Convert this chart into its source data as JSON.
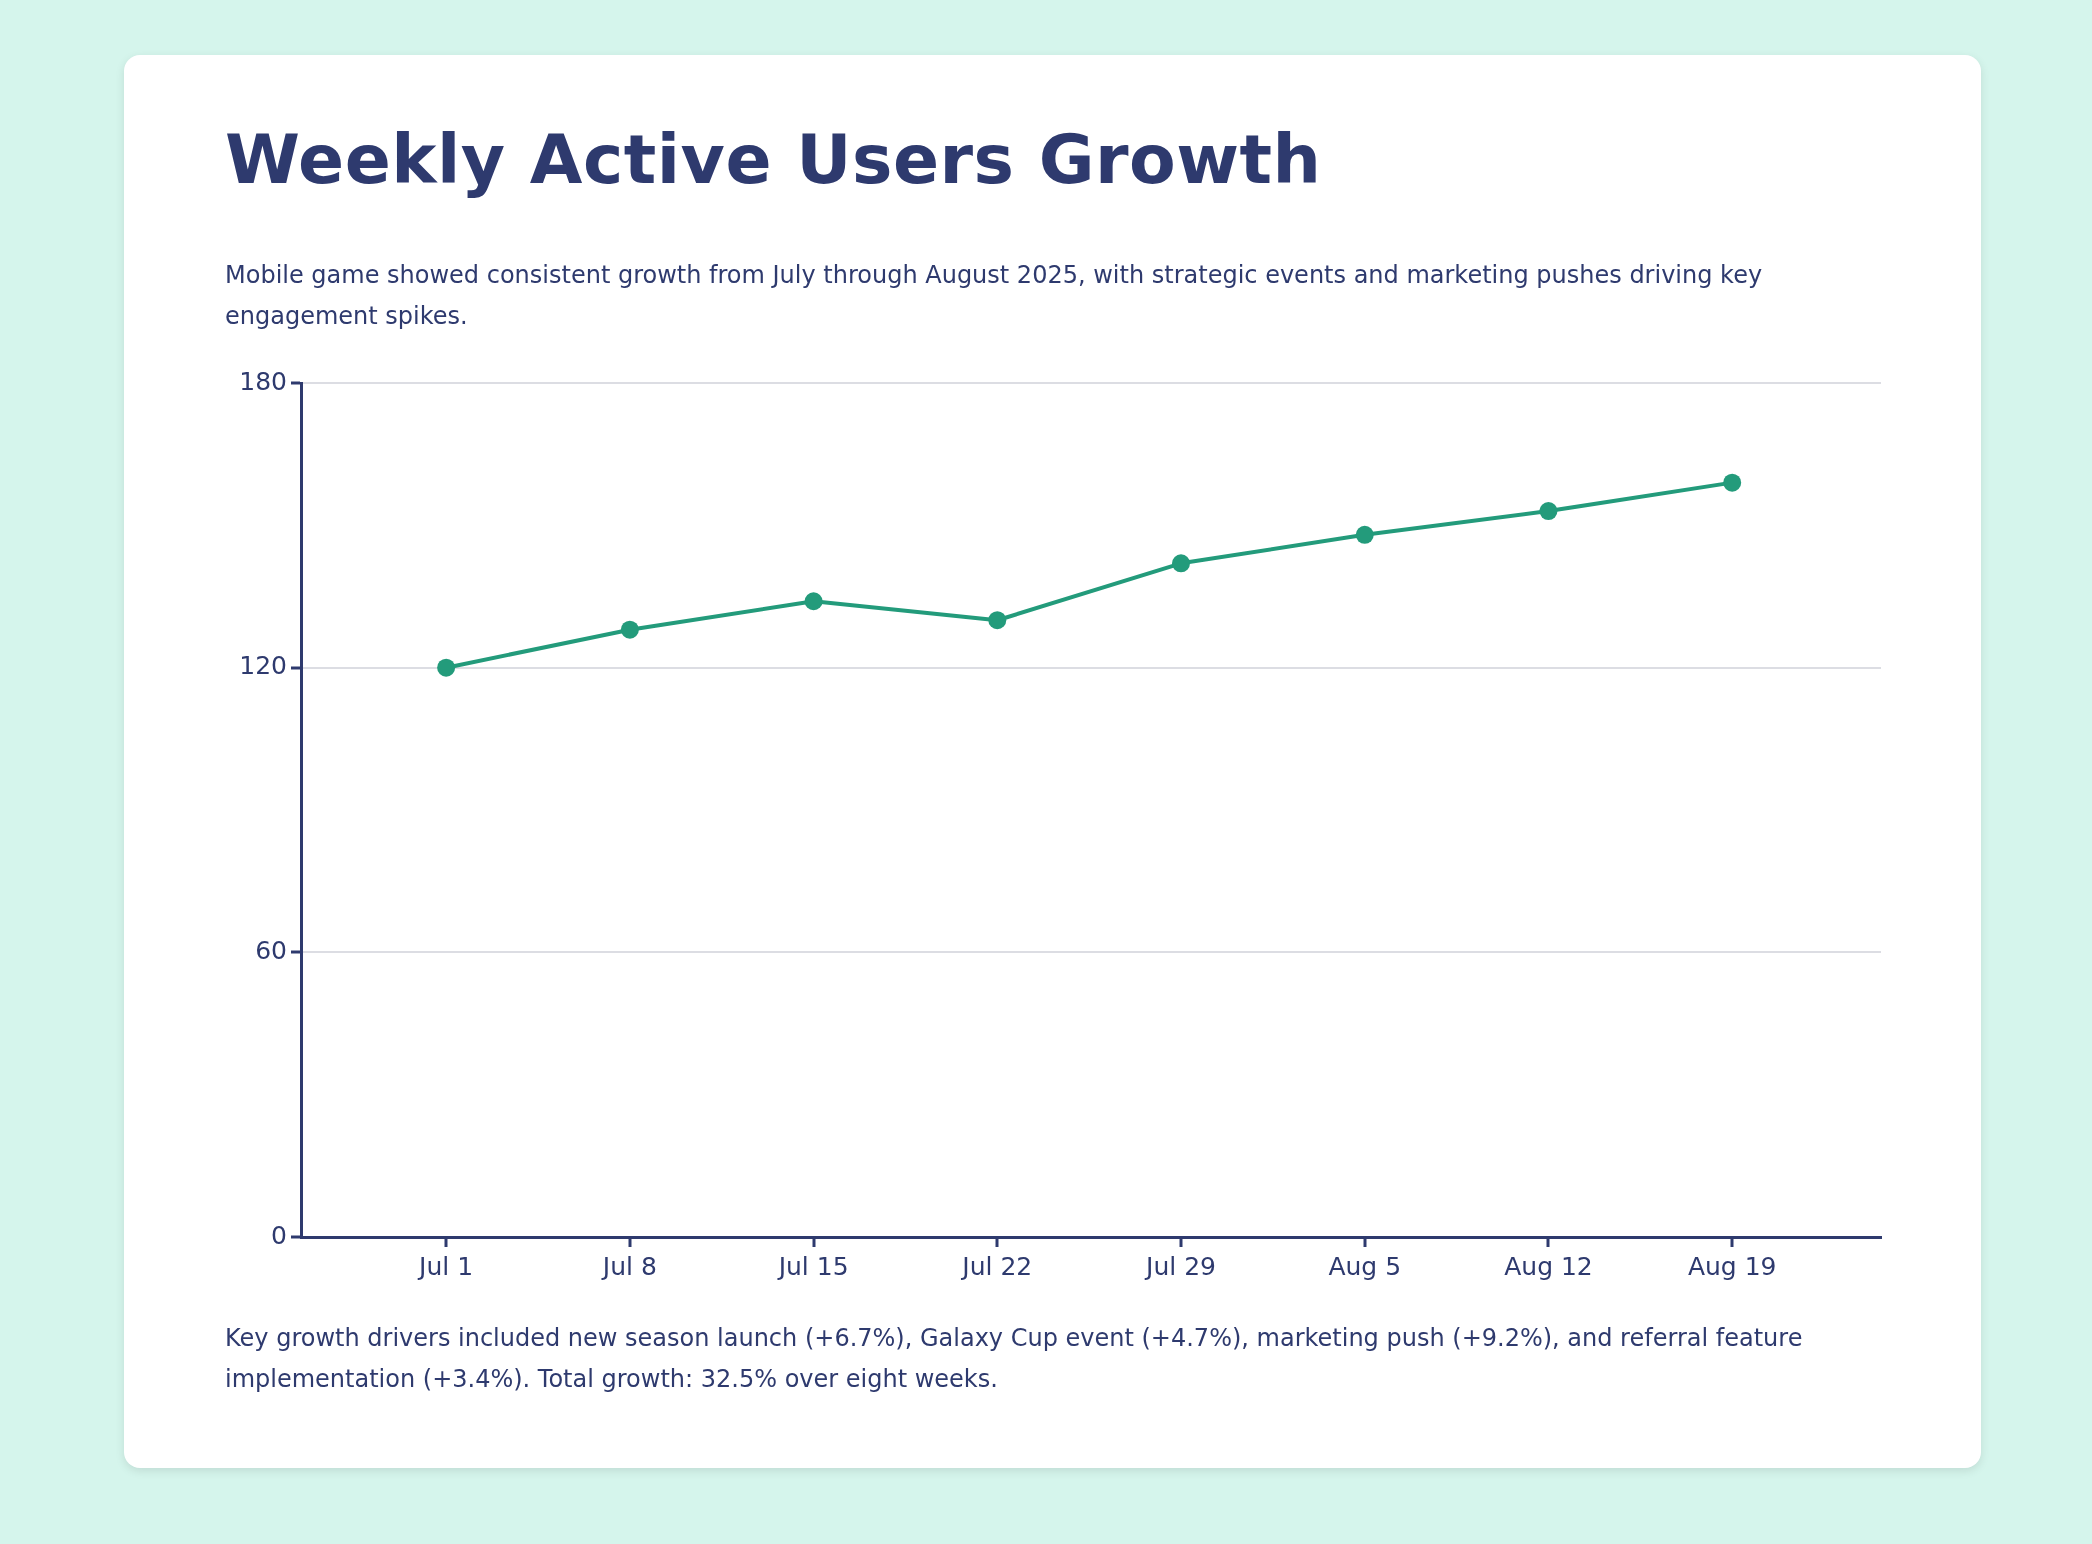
{
  "chart_data": {
    "type": "line",
    "title": "Weekly Active Users Growth",
    "subtitle": "Mobile game showed consistent growth from July through August 2025, with strategic events and marketing pushes driving key engagement spikes.",
    "categories": [
      "Jul 1",
      "Jul 8",
      "Jul 15",
      "Jul 22",
      "Jul 29",
      "Aug 5",
      "Aug 12",
      "Aug 19"
    ],
    "series": [
      {
        "color": "#239b7b",
        "values": [
          120,
          128,
          134,
          130,
          142,
          148,
          153,
          159
        ]
      }
    ],
    "ylim": [
      0,
      180
    ],
    "yticks": [
      0,
      60,
      120,
      180
    ],
    "grid": "y",
    "marker": "circle",
    "line_style": "solid",
    "annotations": [
      "Key growth drivers included new season launch (+6.7%), Galaxy Cup event (+4.7%), marketing push (+9.2%), and referral feature implementation (+3.4%). Total growth: 32.5% over eight weeks."
    ]
  }
}
